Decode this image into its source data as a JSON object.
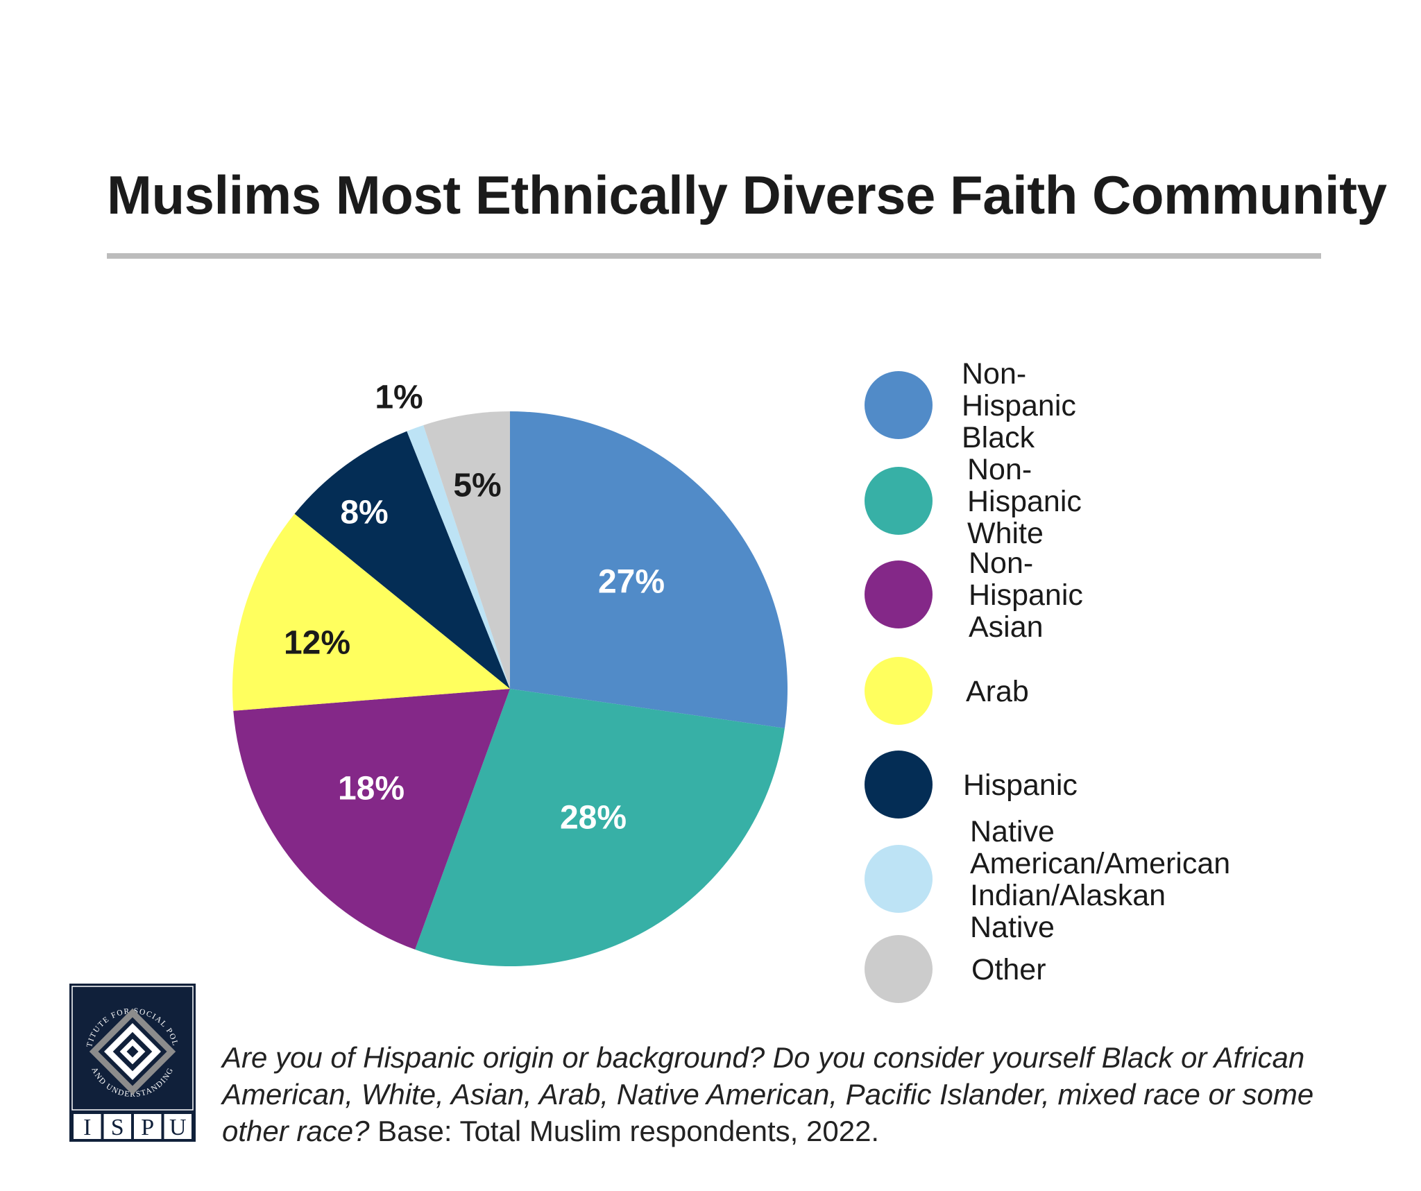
{
  "chart_data": {
    "type": "pie",
    "title": "Muslims Most Ethnically Diverse Faith Community",
    "slices": [
      {
        "label": "Non-Hispanic Black",
        "value": 27,
        "display": "27%",
        "color": "#518bc8",
        "label_color": "#ffffff"
      },
      {
        "label": "Non-Hispanic White",
        "value": 28,
        "display": "28%",
        "color": "#37b0a6",
        "label_color": "#ffffff"
      },
      {
        "label": "Non-Hispanic Asian",
        "value": 18,
        "display": "18%",
        "color": "#842888",
        "label_color": "#ffffff"
      },
      {
        "label": "Arab",
        "value": 12,
        "display": "12%",
        "color": "#ffff5e",
        "label_color": "#1a1a1a"
      },
      {
        "label": "Hispanic",
        "value": 8,
        "display": "8%",
        "color": "#042d55",
        "label_color": "#ffffff"
      },
      {
        "label": "Native American/American Indian/Alaskan Native",
        "value": 1,
        "display": "1%",
        "color": "#bde3f5",
        "label_color": "#1a1a1a"
      },
      {
        "label": "Other",
        "value": 5,
        "display": "5%",
        "color": "#cccccc",
        "label_color": "#1a1a1a"
      }
    ],
    "legend_position": "right"
  },
  "legend": [
    {
      "label": "Non-Hispanic Black",
      "color": "#518bc8"
    },
    {
      "label": "Non-Hispanic White",
      "color": "#37b0a6"
    },
    {
      "label": "Non-Hispanic Asian",
      "color": "#842888"
    },
    {
      "label": "Arab",
      "color": "#ffff5e"
    },
    {
      "label": "Hispanic",
      "color": "#042d55"
    },
    {
      "label": "Native American/American\nIndian/Alaskan Native",
      "color": "#bde3f5"
    },
    {
      "label": "Other",
      "color": "#cccccc"
    }
  ],
  "logo": {
    "arc_text": "INSTITUTE FOR SOCIAL POLICY AND UNDERSTANDING",
    "letters": [
      "I",
      "S",
      "P",
      "U"
    ],
    "background": "#10203a"
  },
  "footnote": {
    "question": "Are you of Hispanic origin or background? Do you consider yourself Black or African American, White, Asian, Arab, Native American, Pacific Islander, mixed race or some other race?",
    "base": " Base: Total Muslim respondents, 2022."
  }
}
